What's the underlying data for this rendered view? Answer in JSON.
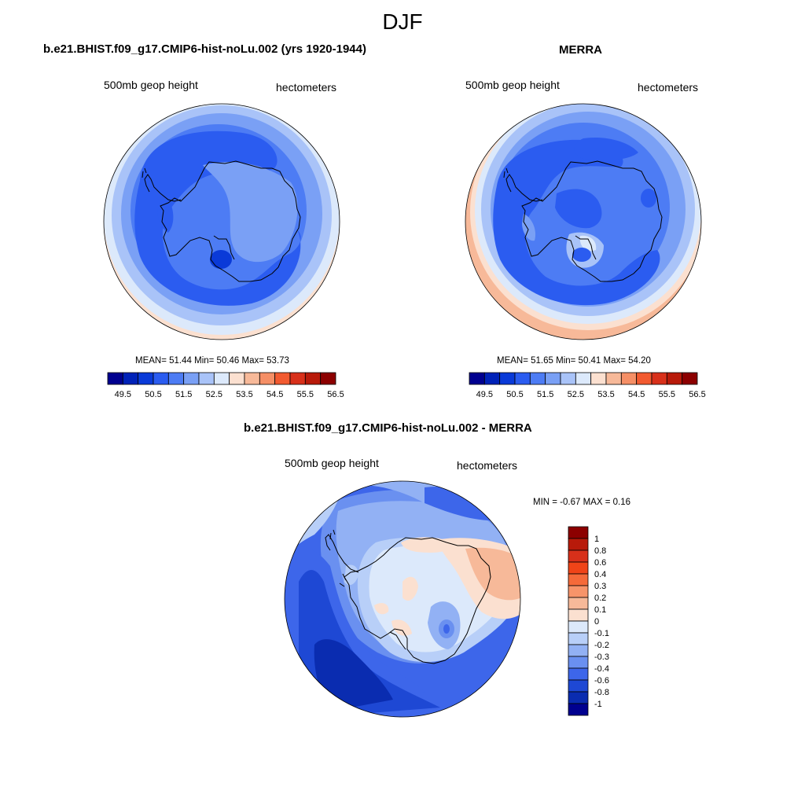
{
  "figure_title": "DJF",
  "panels": [
    {
      "title": "b.e21.BHIST.f09_g17.CMIP6-hist-noLu.002 (yrs 1920-1944)",
      "left_label": "500mb geop height",
      "right_label": "hectometers",
      "stats_text": "MEAN=  51.44  Min=  50.46  Max=  53.73",
      "mean": 51.44,
      "min": 50.46,
      "max": 53.73,
      "colorbar_ticks": [
        "49.5",
        "50.5",
        "51.5",
        "52.5",
        "53.5",
        "54.5",
        "55.5",
        "56.5"
      ]
    },
    {
      "title": "MERRA",
      "left_label": "500mb geop height",
      "right_label": "hectometers",
      "stats_text": "MEAN=  51.65  Min=  50.41  Max=  54.20",
      "mean": 51.65,
      "min": 50.41,
      "max": 54.2,
      "colorbar_ticks": [
        "49.5",
        "50.5",
        "51.5",
        "52.5",
        "53.5",
        "54.5",
        "55.5",
        "56.5"
      ]
    },
    {
      "title": "b.e21.BHIST.f09_g17.CMIP6-hist-noLu.002 - MERRA",
      "left_label": "500mb geop height",
      "right_label": "hectometers",
      "stats_text": "MIN =  -0.67 MAX =   0.16",
      "min": -0.67,
      "max": 0.16,
      "colorbar_ticks": [
        "1",
        "0.8",
        "0.6",
        "0.4",
        "0.3",
        "0.2",
        "0.1",
        "0",
        "-0.1",
        "-0.2",
        "-0.3",
        "-0.4",
        "-0.6",
        "-0.8",
        "-1"
      ]
    }
  ],
  "colors": {
    "abs_scale": [
      "#00008f",
      "#0022b8",
      "#0a3ad8",
      "#2b5cf0",
      "#4d7cf4",
      "#7aa0f5",
      "#a9c3f8",
      "#dce9fb",
      "#fbe0d0",
      "#f7b999",
      "#f58f66",
      "#f25a30",
      "#d8301a",
      "#b81a0a",
      "#8c0000"
    ],
    "diff_scale": [
      "#8c0000",
      "#b81a0a",
      "#d8301a",
      "#f04418",
      "#f56a3a",
      "#f7946a",
      "#f7b999",
      "#fbe0d0",
      "#dce9fb",
      "#b8cff8",
      "#92b1f4",
      "#6a90f0",
      "#3d66ea",
      "#1e48d4",
      "#0a2cb0",
      "#00008f"
    ]
  }
}
